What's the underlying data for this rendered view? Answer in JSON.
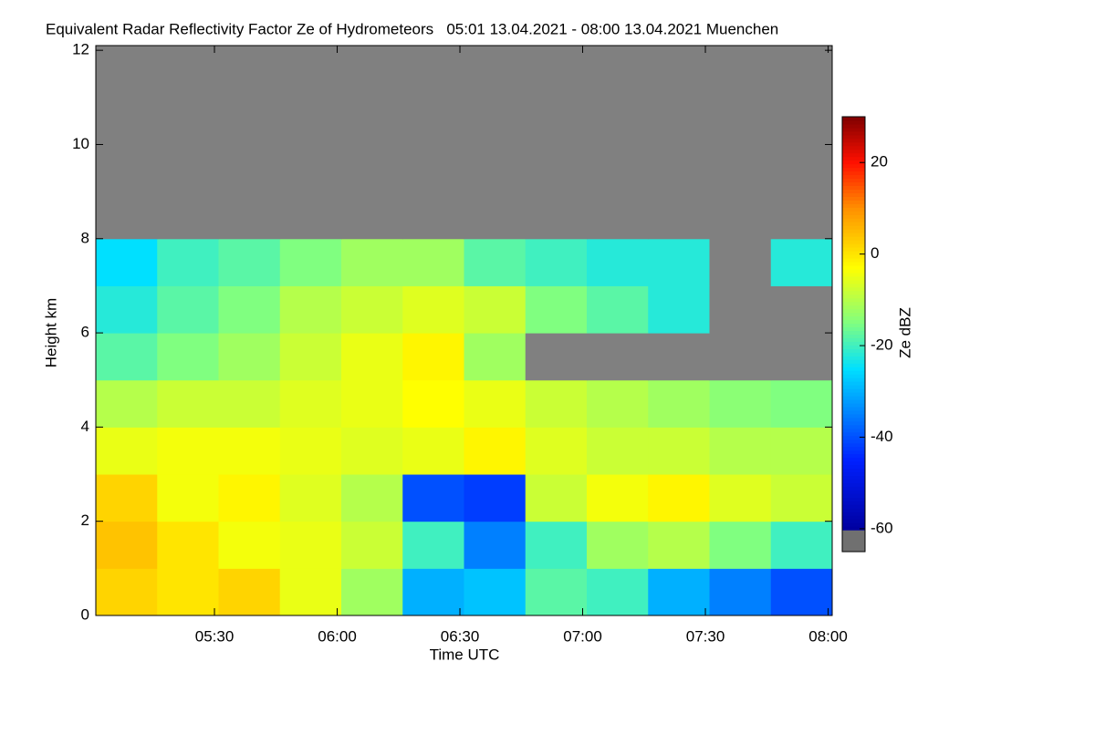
{
  "chart_data": {
    "type": "heatmap",
    "title": "Equivalent Radar Reflectivity Factor Ze of Hydrometeors   05:01 13.04.2021 - 08:00 13.04.2021 Muenchen",
    "x_label": "Time UTC",
    "y_label": "Height km",
    "colorbar_label": "Ze dBZ",
    "xlim": [
      301,
      481
    ],
    "ylim": [
      0,
      12.1
    ],
    "xticks": [
      {
        "value": 330,
        "label": "05:30"
      },
      {
        "value": 360,
        "label": "06:00"
      },
      {
        "value": 390,
        "label": "06:30"
      },
      {
        "value": 420,
        "label": "07:00"
      },
      {
        "value": 450,
        "label": "07:30"
      },
      {
        "value": 480,
        "label": "08:00"
      }
    ],
    "yticks": [
      0,
      2,
      4,
      6,
      8,
      10,
      12
    ],
    "x_edges": [
      301,
      316,
      331,
      346,
      361,
      376,
      391,
      406,
      421,
      436,
      451,
      466,
      481
    ],
    "y_edges": [
      0,
      1,
      2,
      3,
      4,
      5,
      6,
      7,
      8,
      9,
      10,
      11,
      12
    ],
    "z": [
      [
        2,
        0,
        2,
        -5,
        -12,
        -30,
        -28,
        -18,
        -20,
        -30,
        -35,
        -40
      ],
      [
        4,
        0,
        -4,
        -5,
        -8,
        -20,
        -35,
        -20,
        -12,
        -10,
        -15,
        -20
      ],
      [
        2,
        -4,
        -2,
        -6,
        -10,
        -40,
        -42,
        -8,
        -4,
        -2,
        -6,
        -8
      ],
      [
        -5,
        -4,
        -4,
        -5,
        -6,
        -5,
        -2,
        -6,
        -8,
        -8,
        -10,
        -10
      ],
      [
        -10,
        -8,
        -8,
        -6,
        -5,
        -3,
        -5,
        -8,
        -10,
        -12,
        -14,
        -15
      ],
      [
        -18,
        -15,
        -12,
        -8,
        -5,
        -2,
        -12,
        null,
        null,
        null,
        null,
        null
      ],
      [
        -22,
        -18,
        -15,
        -10,
        -8,
        -6,
        -8,
        -15,
        -18,
        -22,
        null,
        null
      ],
      [
        -25,
        -20,
        -18,
        -15,
        -12,
        -12,
        -18,
        -20,
        -22,
        -22,
        null,
        -22
      ],
      [
        null,
        null,
        null,
        null,
        null,
        null,
        null,
        null,
        null,
        null,
        null,
        null
      ],
      [
        null,
        null,
        null,
        null,
        null,
        null,
        null,
        null,
        null,
        null,
        null,
        null
      ],
      [
        null,
        null,
        null,
        null,
        null,
        null,
        null,
        null,
        null,
        null,
        null,
        null
      ],
      [
        null,
        null,
        null,
        null,
        null,
        null,
        null,
        null,
        null,
        null,
        null,
        null
      ]
    ],
    "nodata_color": "#808080",
    "below_color": "#707070",
    "clim": [
      -65,
      30
    ],
    "colorbar_ticks": [
      20,
      0,
      -20,
      -40,
      -60
    ],
    "colormap": [
      {
        "value": -60,
        "color": "#0000a0"
      },
      {
        "value": -45,
        "color": "#0020ff"
      },
      {
        "value": -25,
        "color": "#00e0ff"
      },
      {
        "value": -15,
        "color": "#80ff80"
      },
      {
        "value": -3,
        "color": "#ffff00"
      },
      {
        "value": 10,
        "color": "#ff9000"
      },
      {
        "value": 20,
        "color": "#ff1000"
      },
      {
        "value": 30,
        "color": "#800000"
      }
    ]
  }
}
